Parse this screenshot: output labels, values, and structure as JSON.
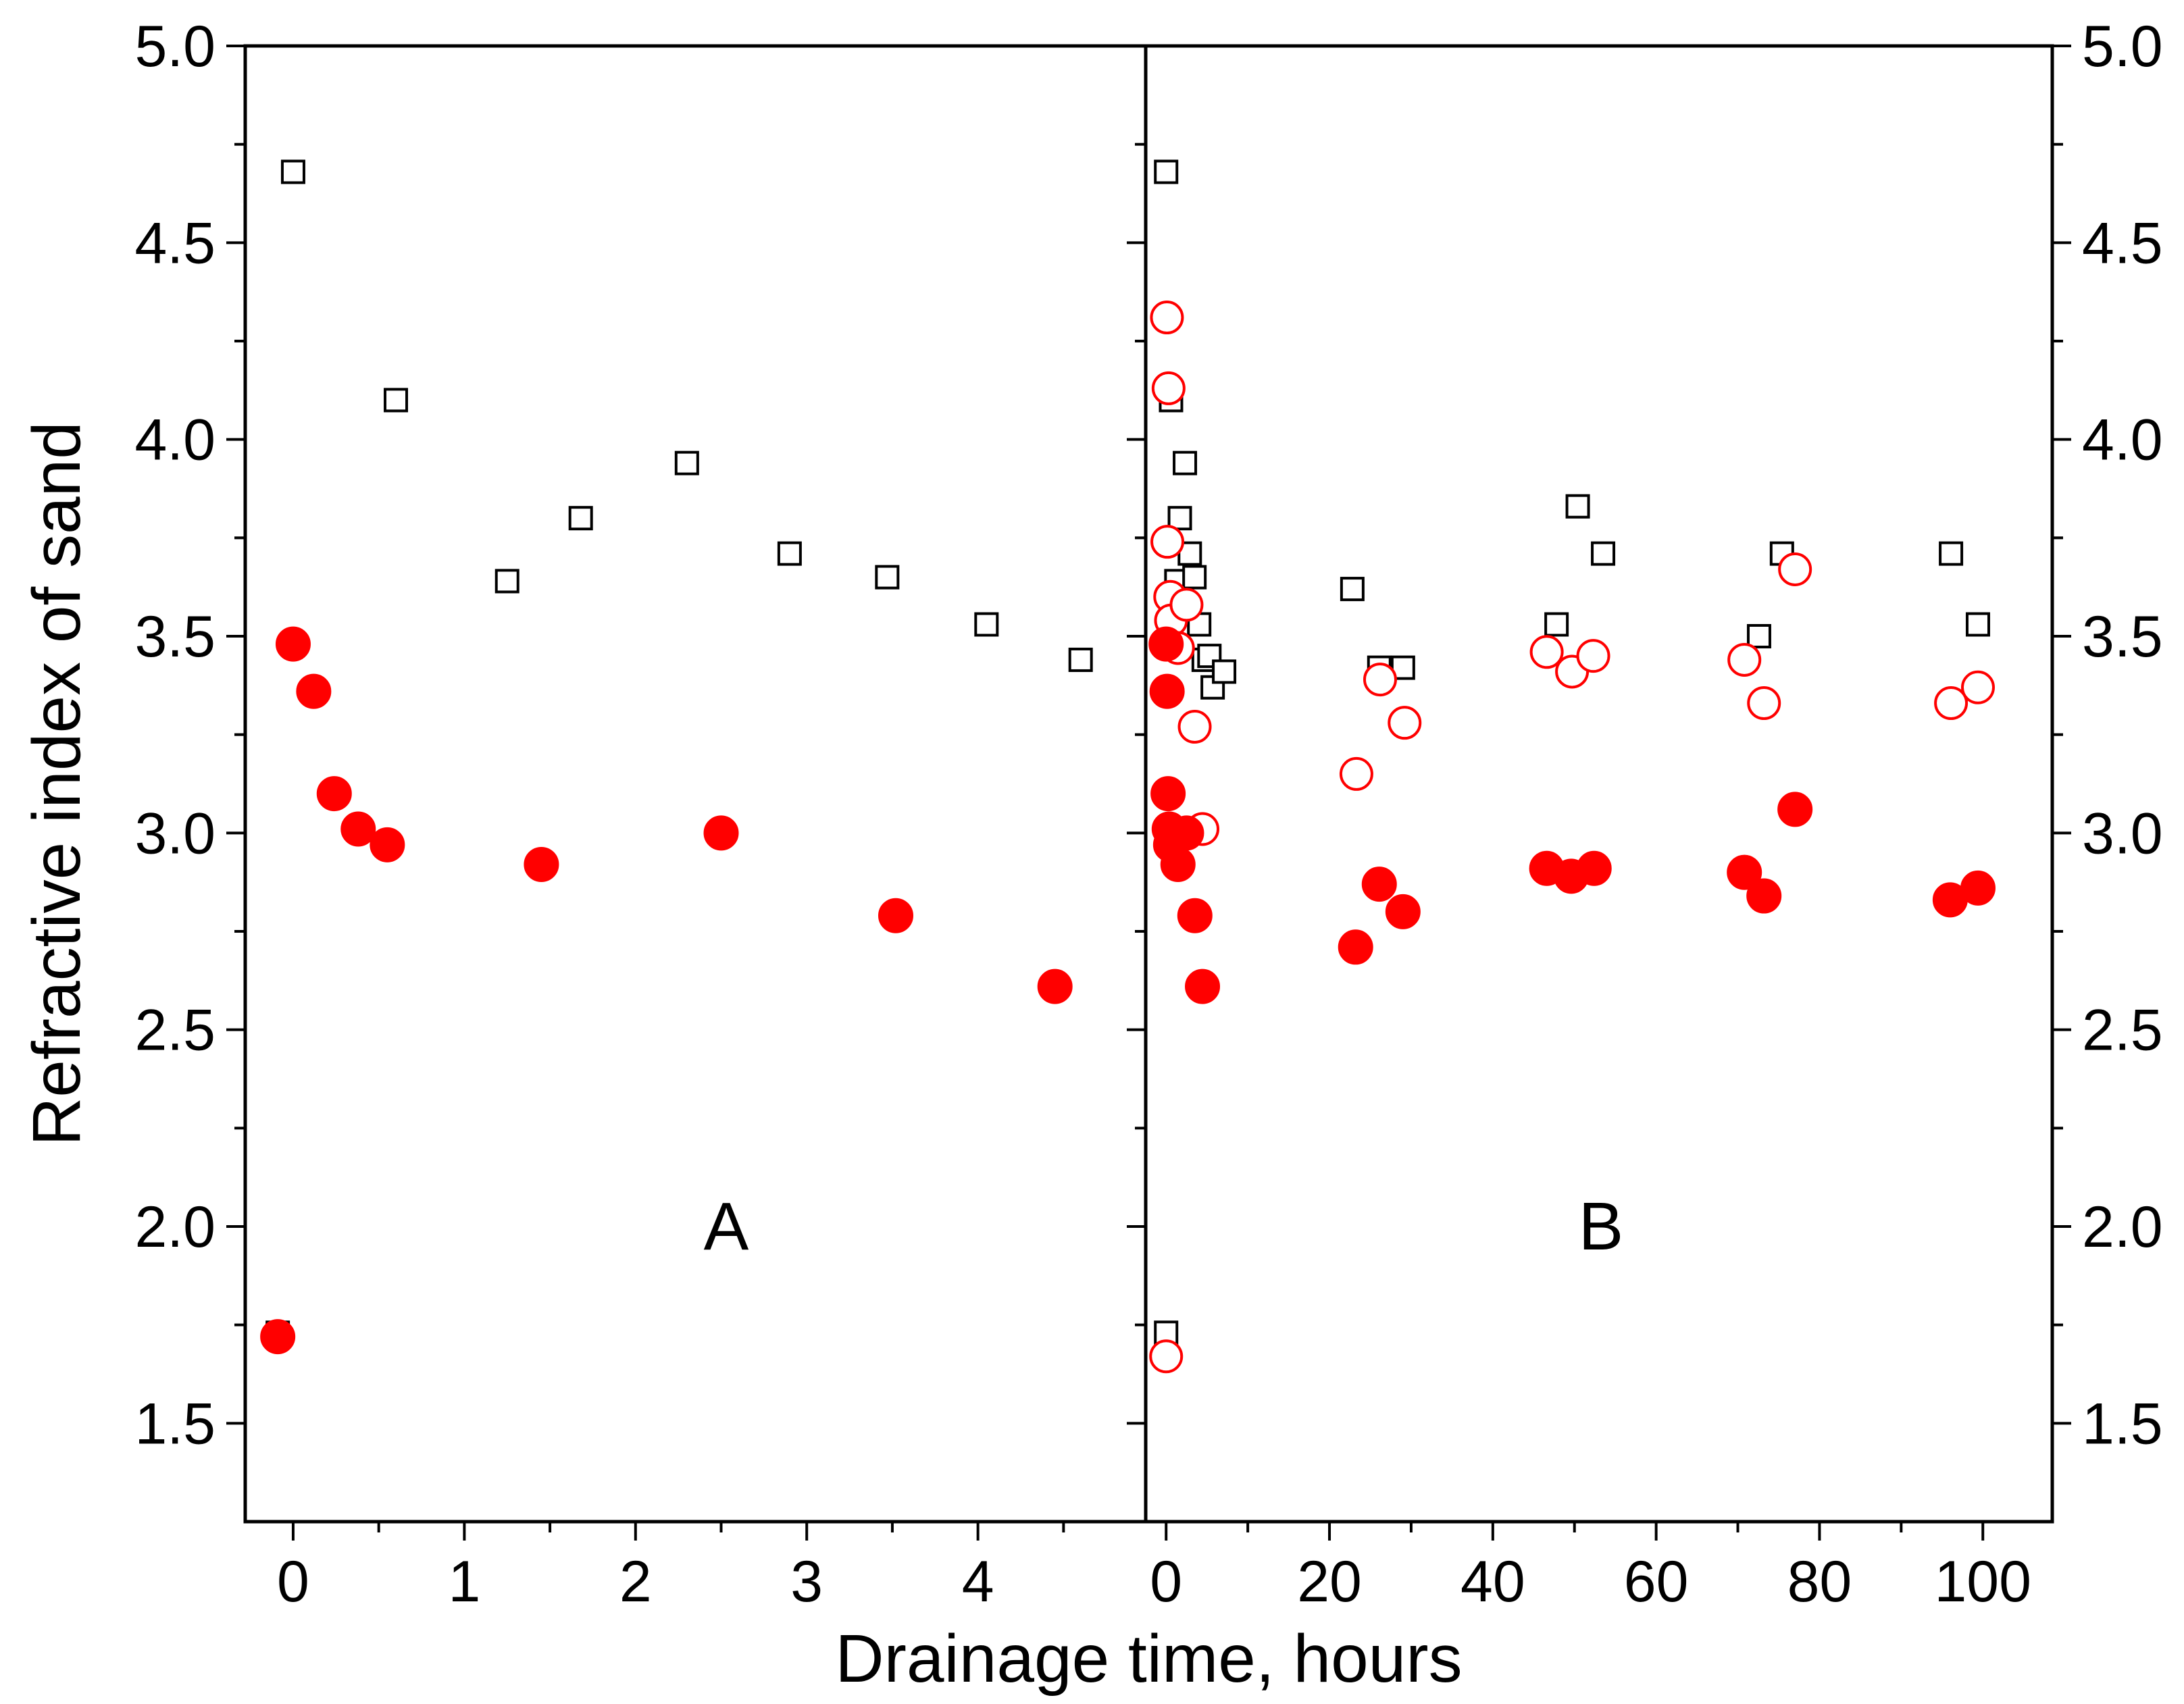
{
  "chart_data": {
    "type": "scatter",
    "ylabel": "Refractive index of sand",
    "xlabel": "Drainage time, hours",
    "ylim": [
      1.25,
      5.0
    ],
    "y_ticks": [
      "1.5",
      "2.0",
      "2.5",
      "3.0",
      "3.5",
      "4.0",
      "4.5",
      "5.0"
    ],
    "y_ticks_right": [
      "1.5",
      "2.0",
      "2.5",
      "3.0",
      "3.5",
      "4.0",
      "4.5",
      "5.0"
    ],
    "colors": {
      "black": "#000000",
      "red": "#ff0000"
    },
    "panels": [
      {
        "label": "A",
        "xlim": [
          -0.28,
          4.98
        ],
        "x_ticks": [
          "0",
          "1",
          "2",
          "3",
          "4"
        ],
        "series": [
          {
            "name": "open squares (black)",
            "marker": "square-open",
            "color": "#000000",
            "x": [
              -0.09,
              0.0,
              0.6,
              1.25,
              1.68,
              2.3,
              2.9,
              3.47,
              4.05,
              4.6
            ],
            "y": [
              1.73,
              4.68,
              4.1,
              3.64,
              3.8,
              3.94,
              3.71,
              3.65,
              3.53,
              3.44
            ]
          },
          {
            "name": "filled circles (red)",
            "marker": "circle-filled",
            "color": "#ff0000",
            "x": [
              -0.09,
              0.0,
              0.12,
              0.24,
              0.38,
              0.55,
              1.45,
              2.5,
              3.52,
              4.45
            ],
            "y": [
              1.72,
              3.48,
              3.36,
              3.1,
              3.01,
              2.97,
              2.92,
              3.0,
              2.79,
              2.61
            ]
          }
        ]
      },
      {
        "label": "B",
        "xlim": [
          -2.5,
          108.5
        ],
        "x_ticks": [
          "0",
          "20",
          "40",
          "60",
          "80",
          "100"
        ],
        "series": [
          {
            "name": "open squares (black)",
            "marker": "square-open",
            "color": "#000000",
            "x": [
              0.0,
              0.0,
              0.6,
              1.25,
              1.68,
              2.3,
              2.9,
              3.47,
              4.05,
              4.6,
              5.3,
              5.7,
              7.1,
              22.8,
              26.1,
              29.0,
              47.8,
              50.4,
              53.5,
              72.6,
              75.4,
              96.1,
              99.4
            ],
            "y": [
              1.73,
              4.68,
              4.1,
              3.64,
              3.8,
              3.94,
              3.71,
              3.65,
              3.53,
              3.44,
              3.45,
              3.37,
              3.41,
              3.62,
              3.42,
              3.42,
              3.53,
              3.83,
              3.71,
              3.5,
              3.71,
              3.71,
              3.53
            ]
          },
          {
            "name": "open circles (red)",
            "marker": "circle-open",
            "color": "#ff0000",
            "x": [
              0.0,
              0.1,
              0.3,
              0.15,
              0.5,
              0.6,
              1.45,
              2.5,
              3.5,
              4.45,
              23.3,
              26.2,
              29.2,
              46.6,
              49.7,
              52.3,
              70.8,
              73.2,
              77.0,
              96.1,
              99.4
            ],
            "y": [
              1.67,
              4.31,
              4.13,
              3.74,
              3.6,
              3.54,
              3.47,
              3.58,
              3.27,
              3.01,
              3.15,
              3.39,
              3.28,
              3.46,
              3.41,
              3.45,
              3.44,
              3.33,
              3.67,
              3.33,
              3.37
            ]
          },
          {
            "name": "filled circles (red)",
            "marker": "circle-filled",
            "color": "#ff0000",
            "x": [
              0.0,
              0.12,
              0.24,
              0.38,
              0.55,
              1.45,
              2.5,
              3.52,
              4.45,
              23.2,
              26.1,
              29.0,
              46.6,
              49.6,
              52.4,
              70.8,
              73.2,
              77.0,
              96.0,
              99.4
            ],
            "y": [
              3.48,
              3.36,
              3.1,
              3.01,
              2.97,
              2.92,
              3.0,
              2.79,
              2.61,
              2.71,
              2.87,
              2.8,
              2.91,
              2.89,
              2.91,
              2.9,
              2.84,
              3.06,
              2.83,
              2.86
            ]
          }
        ]
      }
    ]
  }
}
